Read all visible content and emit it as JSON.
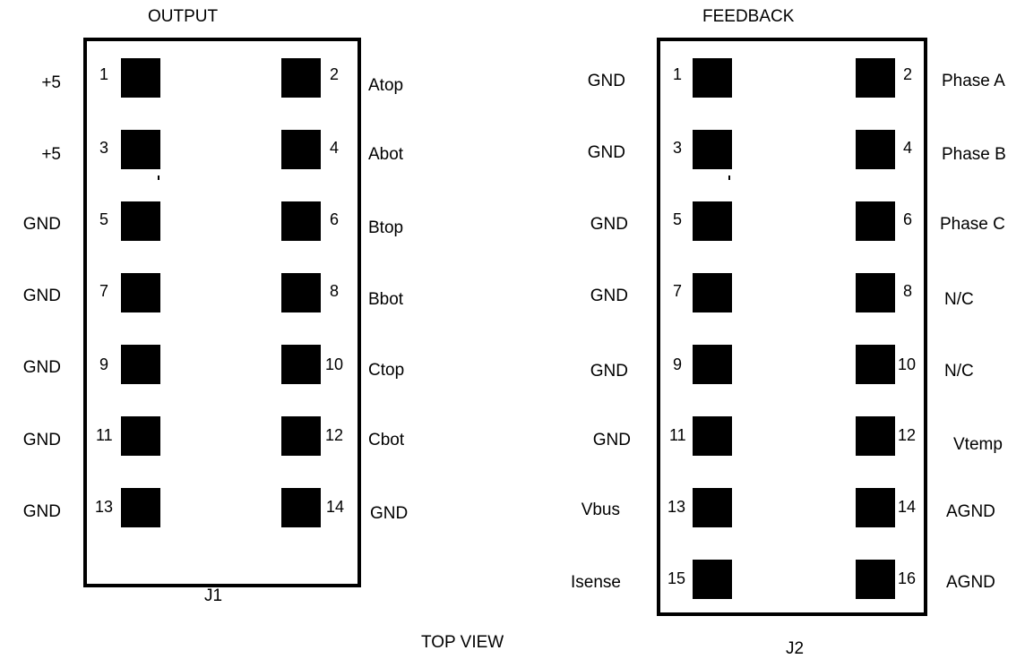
{
  "diagram": {
    "view_label": "TOP VIEW",
    "connectors": [
      {
        "id": "j1",
        "title": "OUTPUT",
        "designator": "J1",
        "pins": [
          {
            "num": "1",
            "signal": "+5"
          },
          {
            "num": "2",
            "signal": "Atop"
          },
          {
            "num": "3",
            "signal": "+5"
          },
          {
            "num": "4",
            "signal": "Abot"
          },
          {
            "num": "5",
            "signal": "GND"
          },
          {
            "num": "6",
            "signal": "Btop"
          },
          {
            "num": "7",
            "signal": "GND"
          },
          {
            "num": "8",
            "signal": "Bbot"
          },
          {
            "num": "9",
            "signal": "GND"
          },
          {
            "num": "10",
            "signal": "Ctop"
          },
          {
            "num": "11",
            "signal": "GND"
          },
          {
            "num": "12",
            "signal": "Cbot"
          },
          {
            "num": "13",
            "signal": "GND"
          },
          {
            "num": "14",
            "signal": "GND"
          }
        ]
      },
      {
        "id": "j2",
        "title": "FEEDBACK",
        "designator": "J2",
        "pins": [
          {
            "num": "1",
            "signal": "GND"
          },
          {
            "num": "2",
            "signal": "Phase A"
          },
          {
            "num": "3",
            "signal": "GND"
          },
          {
            "num": "4",
            "signal": "Phase B"
          },
          {
            "num": "5",
            "signal": "GND"
          },
          {
            "num": "6",
            "signal": "Phase C"
          },
          {
            "num": "7",
            "signal": "GND"
          },
          {
            "num": "8",
            "signal": "N/C"
          },
          {
            "num": "9",
            "signal": "GND"
          },
          {
            "num": "10",
            "signal": "N/C"
          },
          {
            "num": "11",
            "signal": "GND"
          },
          {
            "num": "12",
            "signal": "Vtemp"
          },
          {
            "num": "13",
            "signal": "Vbus"
          },
          {
            "num": "14",
            "signal": "AGND"
          },
          {
            "num": "15",
            "signal": "Isense"
          },
          {
            "num": "16",
            "signal": "AGND"
          }
        ]
      }
    ]
  }
}
